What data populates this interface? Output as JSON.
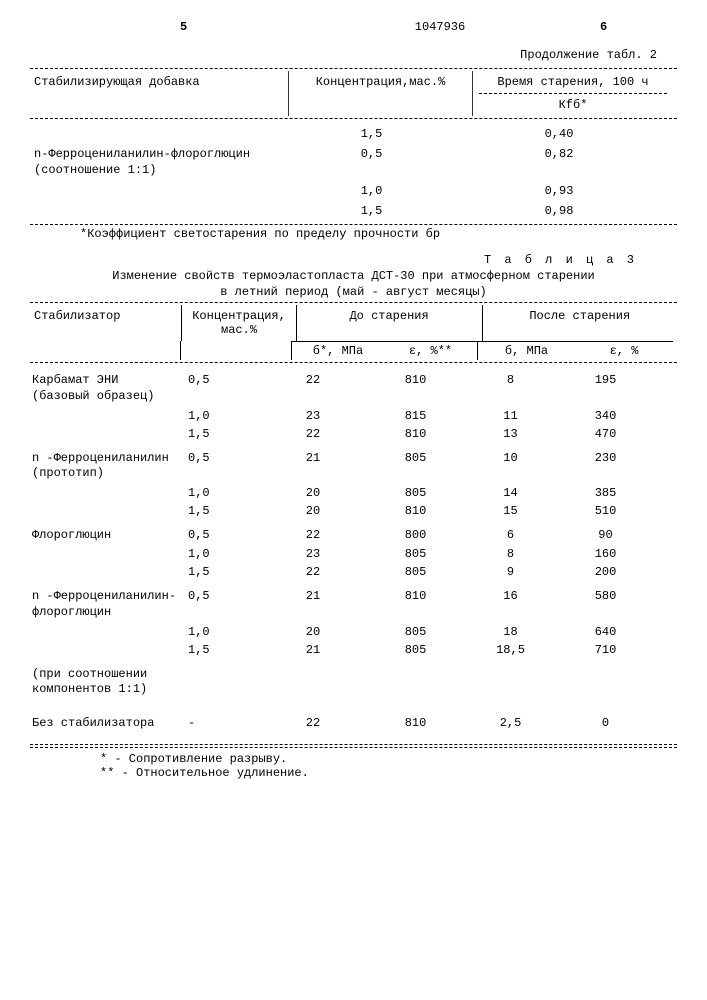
{
  "header": {
    "left_num": "5",
    "page_num": "1047936",
    "right_num": "6"
  },
  "table2": {
    "continuation": "Продолжение табл. 2",
    "col_additive": "Стабилизирующая добавка",
    "col_conc": "Концентрация,мас.%",
    "col_aging": "Время старения, 100 ч",
    "col_kf": "Кfб*",
    "stab_name": "n-Ферроцениланилин-флороглюцин (соотношение 1:1)",
    "rows": [
      {
        "conc": "1,5",
        "val": "0,40"
      },
      {
        "conc": "0,5",
        "val": "0,82"
      },
      {
        "conc": "1,0",
        "val": "0,93"
      },
      {
        "conc": "1,5",
        "val": "0,98"
      }
    ],
    "footnote": "*Коэффициент светостарения по пределу прочности бр"
  },
  "table3": {
    "title_label": "Т а б л и ц а  3",
    "title_text": "Изменение свойств термоэластопласта ДСТ-30 при атмосферном старении в летний период (май - август месяцы)",
    "col_stab": "Стабилизатор",
    "col_conc": "Концентрация, мас.%",
    "col_before": "До старения",
    "col_after": "После старения",
    "sub_sigma": "б, МПа",
    "sub_sigma_star": "б*, МПа",
    "sub_eps": "ε, %",
    "sub_eps_star": "ε, %**",
    "groups": [
      {
        "name": "Карбамат ЭНИ (базовый образец)",
        "rows": [
          {
            "c": "0,5",
            "s1": "22",
            "e1": "810",
            "s2": "8",
            "e2": "195"
          },
          {
            "c": "1,0",
            "s1": "23",
            "e1": "815",
            "s2": "11",
            "e2": "340"
          },
          {
            "c": "1,5",
            "s1": "22",
            "e1": "810",
            "s2": "13",
            "e2": "470"
          }
        ]
      },
      {
        "name": "n -Ферроцениланилин (прототип)",
        "rows": [
          {
            "c": "0,5",
            "s1": "21",
            "e1": "805",
            "s2": "10",
            "e2": "230"
          },
          {
            "c": "1,0",
            "s1": "20",
            "e1": "805",
            "s2": "14",
            "e2": "385"
          },
          {
            "c": "1,5",
            "s1": "20",
            "e1": "810",
            "s2": "15",
            "e2": "510"
          }
        ]
      },
      {
        "name": "Флороглюцин",
        "rows": [
          {
            "c": "0,5",
            "s1": "22",
            "e1": "800",
            "s2": "6",
            "e2": "90"
          },
          {
            "c": "1,0",
            "s1": "23",
            "e1": "805",
            "s2": "8",
            "e2": "160"
          },
          {
            "c": "1,5",
            "s1": "22",
            "e1": "805",
            "s2": "9",
            "e2": "200"
          }
        ]
      },
      {
        "name": "n -Ферроцениланилин-флороглюцин",
        "rows": [
          {
            "c": "0,5",
            "s1": "21",
            "e1": "810",
            "s2": "16",
            "e2": "580"
          },
          {
            "c": "1,0",
            "s1": "20",
            "e1": "805",
            "s2": "18",
            "e2": "640"
          },
          {
            "c": "1,5",
            "s1": "21",
            "e1": "805",
            "s2": "18,5",
            "e2": "710"
          }
        ]
      }
    ],
    "ratio_note": "(при соотношении компонентов 1:1)",
    "no_stab_row": {
      "name": "Без стабилизатора",
      "c": "-",
      "s1": "22",
      "e1": "810",
      "s2": "2,5",
      "e2": "0"
    },
    "foot1": "* - Сопротивление разрыву.",
    "foot2": "** - Относительное удлинение."
  }
}
